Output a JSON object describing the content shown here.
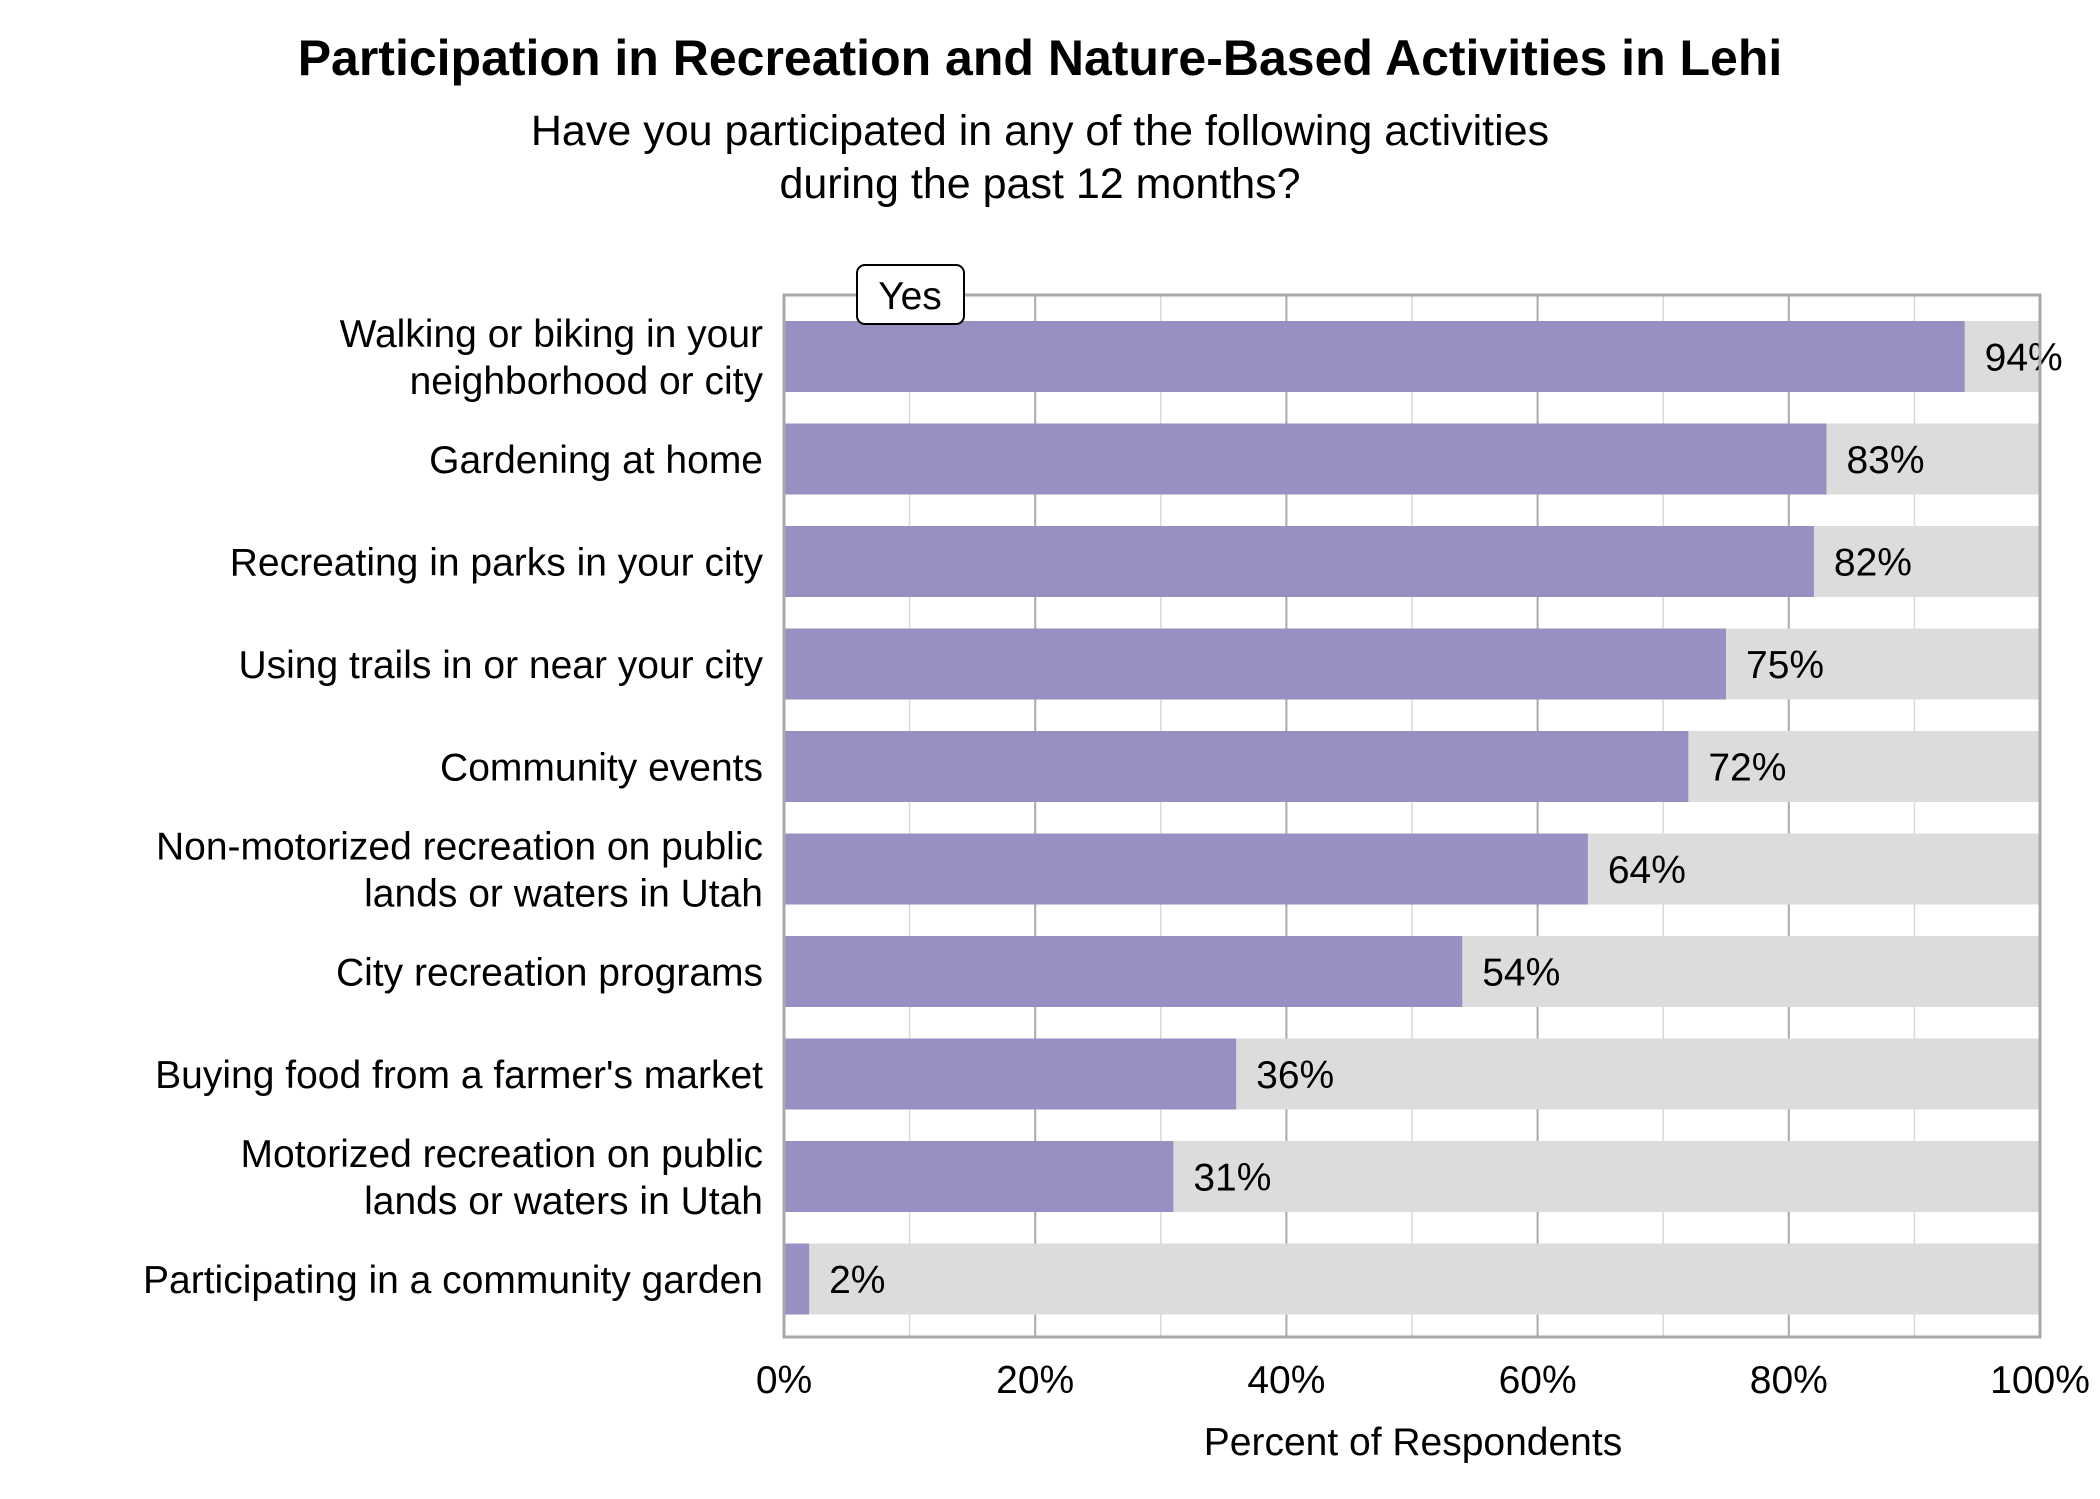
{
  "chart_data": {
    "type": "bar",
    "orientation": "horizontal",
    "stacked_background": true,
    "title": "Participation in Recreation and Nature-Based Activities in Lehi",
    "subtitle_lines": [
      "Have you participated in any of the following activities",
      "during the past 12 months?"
    ],
    "xlabel": "Percent of Respondents",
    "ylabel": "",
    "xlim": [
      0,
      100
    ],
    "xticks": [
      "0%",
      "20%",
      "40%",
      "60%",
      "80%",
      "100%"
    ],
    "grid": true,
    "legend": {
      "position": "top-left",
      "entries": [
        "Yes"
      ]
    },
    "categories": [
      [
        "Walking or biking in your",
        "neighborhood or city"
      ],
      [
        "Gardening at home"
      ],
      [
        "Recreating in parks in your city"
      ],
      [
        "Using trails in or near your city"
      ],
      [
        "Community events"
      ],
      [
        "Non-motorized recreation on public",
        "lands or waters in Utah"
      ],
      [
        "City recreation programs"
      ],
      [
        "Buying food from a farmer's market"
      ],
      [
        "Motorized recreation on public",
        "lands or waters in Utah"
      ],
      [
        "Participating in a community garden"
      ]
    ],
    "series": [
      {
        "name": "Yes",
        "values": [
          94,
          83,
          82,
          75,
          72,
          64,
          54,
          36,
          31,
          2
        ],
        "color": "#998fc3"
      }
    ],
    "data_labels": [
      "94%",
      "83%",
      "82%",
      "75%",
      "72%",
      "64%",
      "54%",
      "36%",
      "31%",
      "2%"
    ],
    "background_color": "#dcdcdc"
  }
}
